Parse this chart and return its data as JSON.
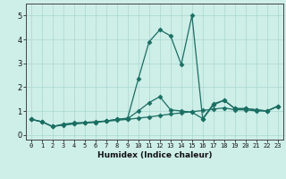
{
  "xlabel": "Humidex (Indice chaleur)",
  "ylabel": "",
  "xlim": [
    -0.5,
    23.5
  ],
  "ylim": [
    -0.2,
    5.5
  ],
  "xticks": [
    0,
    1,
    2,
    3,
    4,
    5,
    6,
    7,
    8,
    9,
    10,
    11,
    12,
    13,
    14,
    15,
    16,
    17,
    18,
    19,
    20,
    21,
    22,
    23
  ],
  "yticks": [
    0,
    1,
    2,
    3,
    4,
    5
  ],
  "bg_color": "#ceeee8",
  "line_color": "#1a6e62",
  "grid_color": "#aad8d0",
  "series": [
    {
      "x": [
        0,
        1,
        2,
        3,
        4,
        5,
        6,
        7,
        8,
        9,
        10,
        11,
        12,
        13,
        14,
        15,
        16,
        17,
        18,
        19,
        20,
        21,
        22,
        23
      ],
      "y": [
        0.65,
        0.55,
        0.35,
        0.45,
        0.5,
        0.52,
        0.55,
        0.58,
        0.65,
        0.7,
        2.35,
        3.9,
        4.4,
        4.15,
        2.95,
        5.0,
        0.65,
        1.25,
        1.45,
        1.1,
        1.1,
        1.05,
        1.0,
        1.2
      ],
      "marker": "D",
      "markersize": 2.5,
      "linestyle": "-",
      "linewidth": 0.9
    },
    {
      "x": [
        0,
        1,
        2,
        3,
        4,
        5,
        6,
        7,
        8,
        9,
        10,
        11,
        12,
        13,
        14,
        15,
        16,
        17,
        18,
        19,
        20,
        21,
        22,
        23
      ],
      "y": [
        0.65,
        0.55,
        0.35,
        0.42,
        0.47,
        0.5,
        0.53,
        0.58,
        0.65,
        0.68,
        1.0,
        1.35,
        1.6,
        1.05,
        1.0,
        0.95,
        0.68,
        1.3,
        1.45,
        1.1,
        1.1,
        1.05,
        1.0,
        1.2
      ],
      "marker": "D",
      "markersize": 2.5,
      "linestyle": "-",
      "linewidth": 0.9
    },
    {
      "x": [
        0,
        1,
        2,
        3,
        4,
        5,
        6,
        7,
        8,
        9,
        10,
        11,
        12,
        13,
        14,
        15,
        16,
        17,
        18,
        19,
        20,
        21,
        22,
        23
      ],
      "y": [
        0.65,
        0.55,
        0.35,
        0.41,
        0.46,
        0.5,
        0.53,
        0.57,
        0.61,
        0.65,
        0.7,
        0.75,
        0.81,
        0.87,
        0.92,
        0.97,
        1.02,
        1.08,
        1.13,
        1.05,
        1.05,
        1.0,
        1.0,
        1.2
      ],
      "marker": "D",
      "markersize": 2.5,
      "linestyle": "-",
      "linewidth": 0.9
    }
  ]
}
